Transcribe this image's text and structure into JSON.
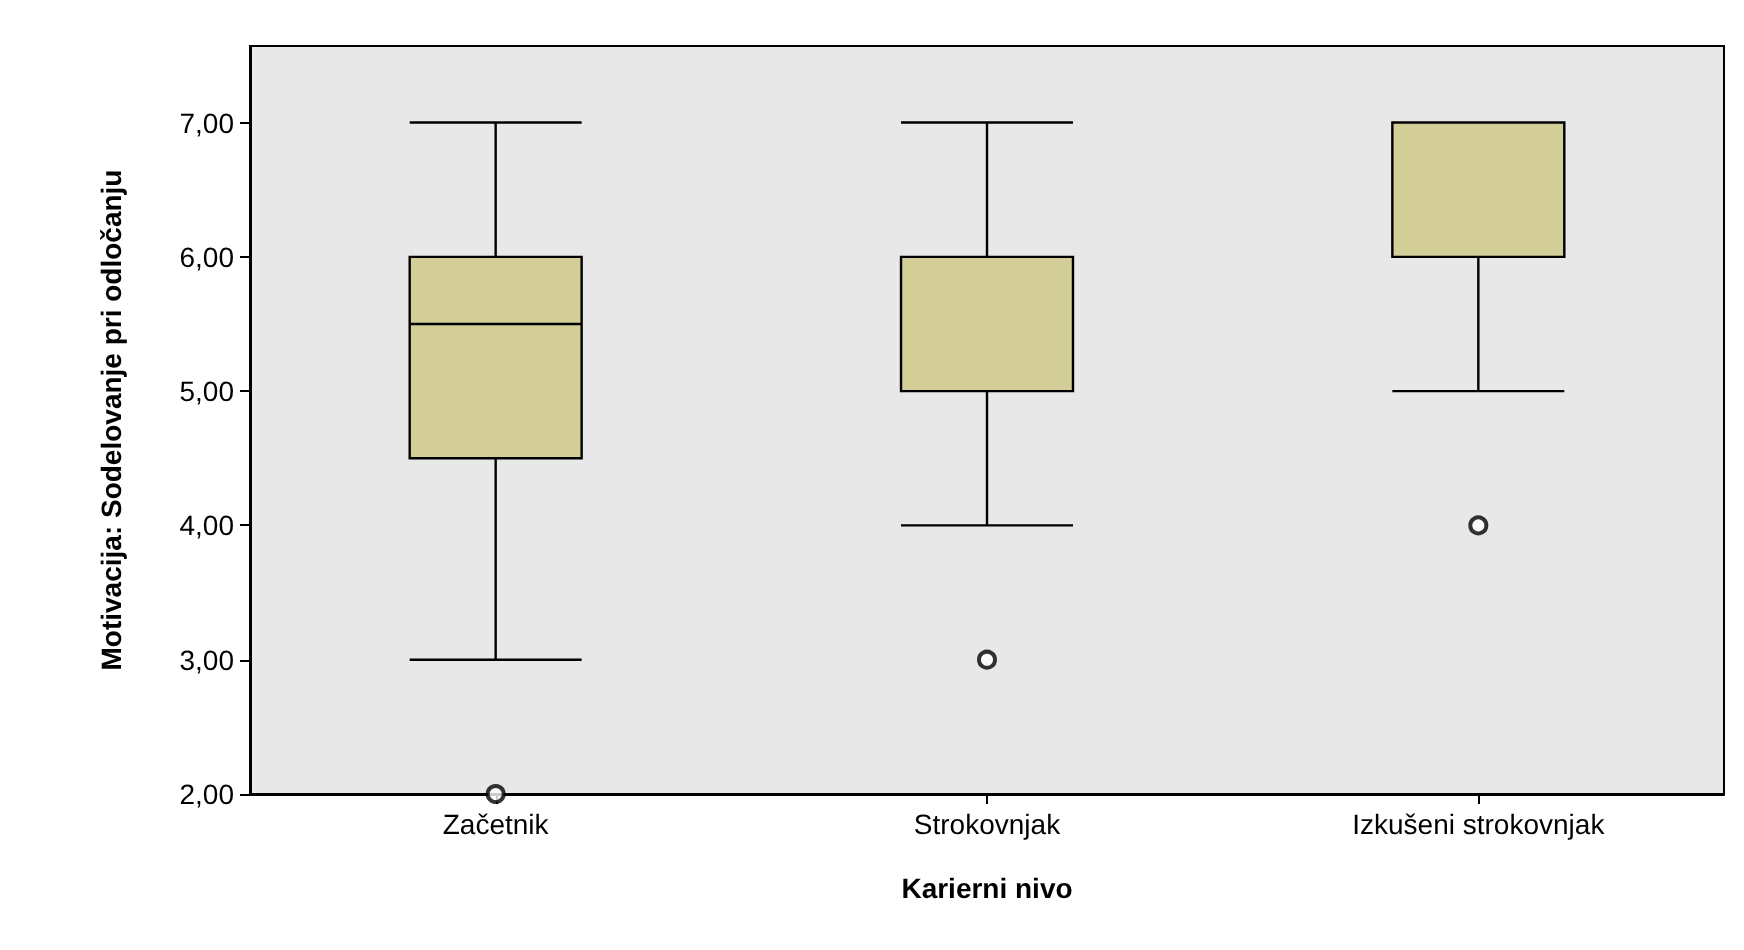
{
  "chart_data": {
    "type": "box",
    "xlabel": "Karierni nivo",
    "ylabel": "Motivacija: Sodelovanje pri odločanju",
    "categories": [
      "Začetnik",
      "Strokovnjak",
      "Izkušeni strokovnjak"
    ],
    "boxes": [
      {
        "low": 3,
        "q1": 4.5,
        "median": 5.5,
        "q3": 6,
        "high": 7,
        "outliers": [
          2
        ]
      },
      {
        "low": 4,
        "q1": 5,
        "median": 5,
        "q3": 6,
        "high": 7,
        "outliers": [
          3
        ]
      },
      {
        "low": 5,
        "q1": 6,
        "median": 6,
        "q3": 7,
        "high": 7,
        "outliers": [
          4
        ]
      }
    ],
    "color": "#d3ce97",
    "ylim": [
      2,
      7.57
    ],
    "yticks": [
      {
        "value": 2,
        "label": "2,00"
      },
      {
        "value": 3,
        "label": "3,00"
      },
      {
        "value": 4,
        "label": "4,00"
      },
      {
        "value": 5,
        "label": "5,00"
      },
      {
        "value": 6,
        "label": "6,00"
      },
      {
        "value": 7,
        "label": "7,00"
      }
    ],
    "grid": false
  }
}
